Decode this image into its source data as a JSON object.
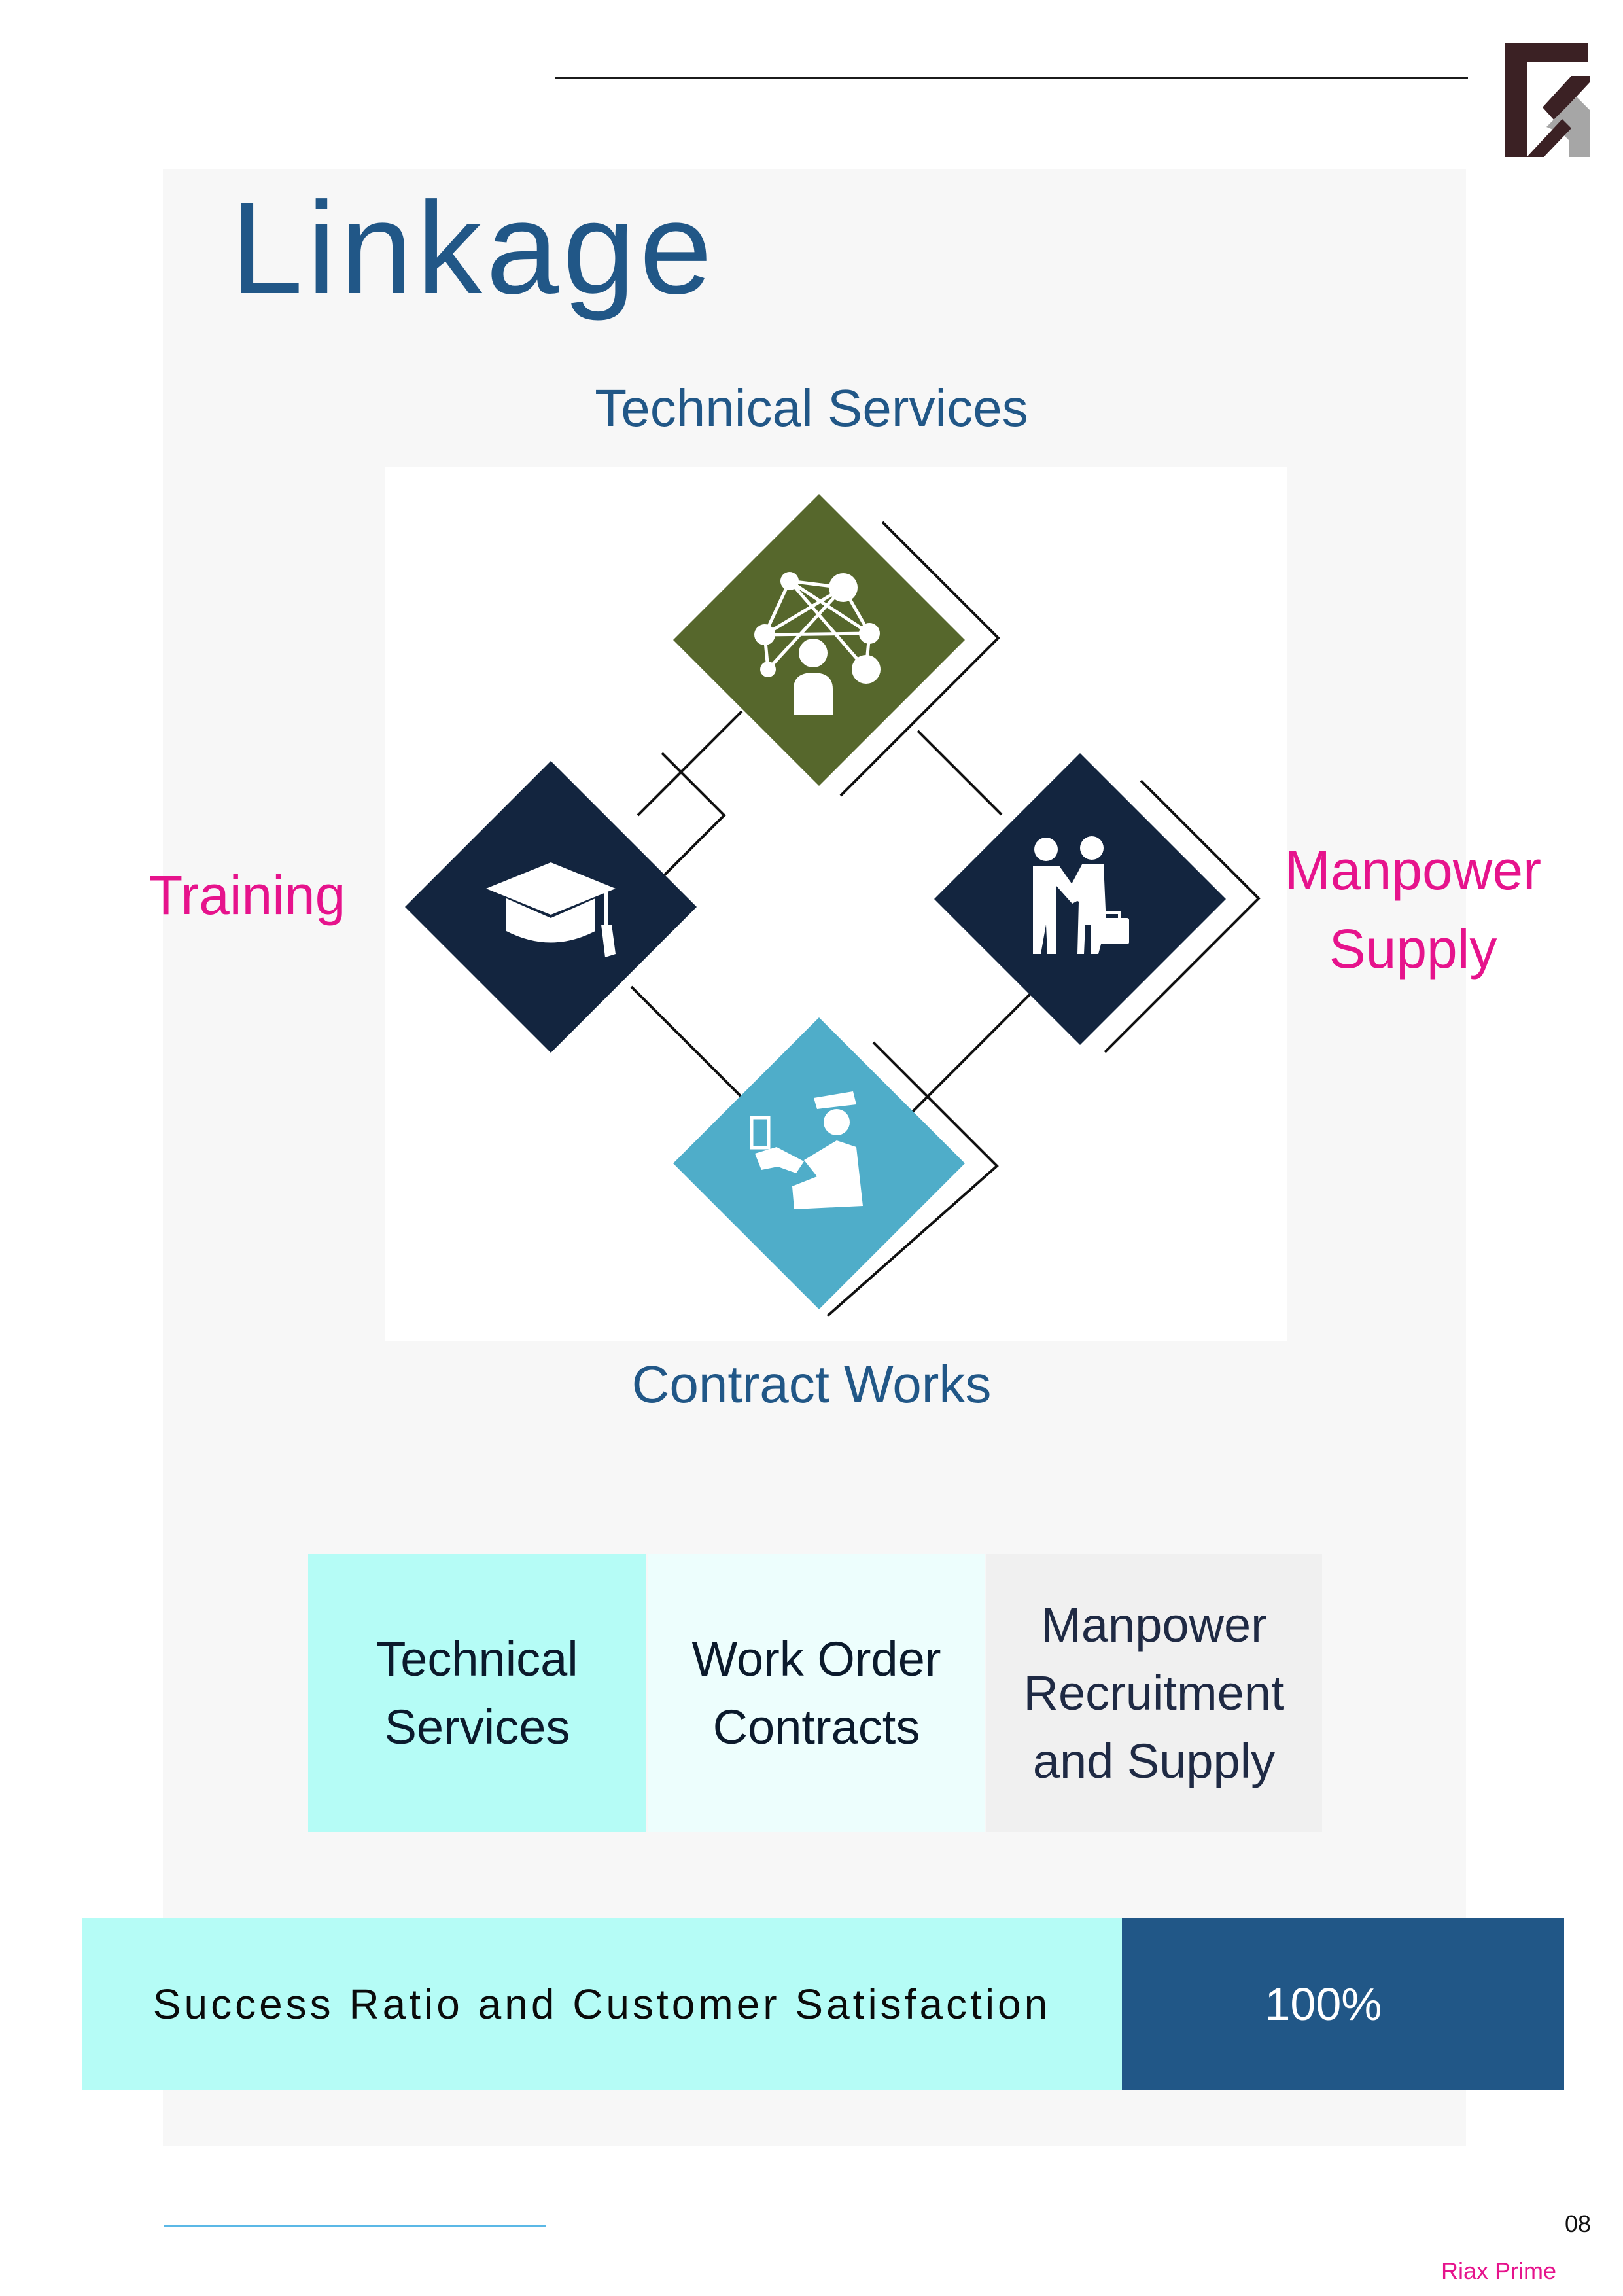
{
  "page": {
    "title": "Linkage",
    "page_number": "08",
    "brand": "Riax Prime"
  },
  "diagram": {
    "top_label": "Technical Services",
    "left_label": "Training",
    "right_label_line1": "Manpower",
    "right_label_line2": "Supply",
    "bottom_label": "Contract Works",
    "colors": {
      "top": "#56672c",
      "left": "#13253f",
      "right": "#13253f",
      "bottom": "#4fadc9",
      "label_blue": "#215787",
      "label_pink": "#e6138c"
    },
    "icons": {
      "top": "network-people-icon",
      "left": "graduation-cap-icon",
      "right": "handshake-icon",
      "bottom": "officer-badge-icon"
    }
  },
  "services": [
    {
      "line1": "Technical",
      "line2": "Services",
      "line3": ""
    },
    {
      "line1": "Work Order",
      "line2": "Contracts",
      "line3": ""
    },
    {
      "line1": "Manpower",
      "line2": "Recruitment",
      "line3": "and Supply"
    }
  ],
  "success": {
    "label": "Success Ratio and Customer Satisfaction",
    "value": "100%"
  }
}
